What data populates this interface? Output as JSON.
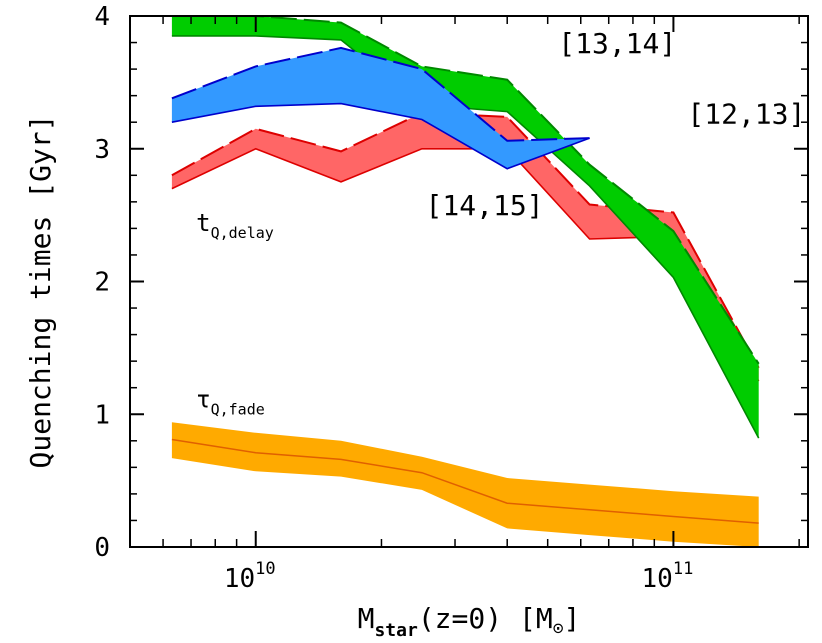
{
  "chart_data": {
    "type": "area",
    "xlabel": {
      "main": "M",
      "sub": "star",
      "rest": "(z=0)  [M",
      "sym": "⊙",
      "end": "]"
    },
    "ylabel": "Quenching times [Gyr]",
    "xscale": "log",
    "xlim": [
      5000000000.0,
      210000000000.0
    ],
    "ylim": [
      0,
      4
    ],
    "y_ticks": [
      0,
      1,
      2,
      3,
      4
    ],
    "y_tick_labels": [
      "0",
      "1",
      "2",
      "3",
      "4"
    ],
    "x_ticks": [
      10000000000.0,
      100000000000.0
    ],
    "x_tick_labels": [
      {
        "base": "10",
        "exp": "10"
      },
      {
        "base": "10",
        "exp": "11"
      }
    ],
    "series": [
      {
        "name": "[14,15]",
        "color": "#ff6666",
        "edge_color": "#dd0000",
        "x": [
          6300000000.0,
          10000000000.0,
          16000000000.0,
          25000000000.0,
          40000000000.0,
          63000000000.0,
          100000000000.0,
          160000000000.0
        ],
        "upper": [
          2.8,
          3.15,
          2.98,
          3.27,
          3.24,
          2.58,
          2.52,
          1.35
        ],
        "lower": [
          2.7,
          3.0,
          2.75,
          3.0,
          3.0,
          2.32,
          2.34,
          1.25
        ]
      },
      {
        "name": "[13,14]",
        "color": "#00cc00",
        "edge_color": "#008800",
        "x": [
          6300000000.0,
          10000000000.0,
          16000000000.0,
          25000000000.0,
          40000000000.0,
          63000000000.0,
          100000000000.0,
          160000000000.0
        ],
        "upper": [
          4.0,
          4.0,
          3.95,
          3.62,
          3.52,
          2.88,
          2.38,
          1.38
        ],
        "lower": [
          3.85,
          3.85,
          3.82,
          3.33,
          3.28,
          2.72,
          2.03,
          0.82
        ]
      },
      {
        "name": "[12,13]",
        "color": "#3399ff",
        "edge_color": "#0000cc",
        "x": [
          6300000000.0,
          10000000000.0,
          16000000000.0,
          25000000000.0,
          40000000000.0,
          63000000000.0
        ],
        "upper": [
          3.38,
          3.62,
          3.76,
          3.6,
          3.06,
          3.08
        ],
        "lower": [
          3.2,
          3.32,
          3.34,
          3.22,
          2.85,
          3.08
        ]
      },
      {
        "name": "tau_Q,fade",
        "color": "#ffaa00",
        "edge_color": "#e06000",
        "x": [
          6300000000.0,
          10000000000.0,
          16000000000.0,
          25000000000.0,
          40000000000.0,
          63000000000.0,
          100000000000.0,
          160000000000.0
        ],
        "upper": [
          0.94,
          0.86,
          0.8,
          0.68,
          0.52,
          0.47,
          0.42,
          0.38
        ],
        "lower": [
          0.67,
          0.57,
          0.53,
          0.43,
          0.14,
          0.09,
          0.04,
          0.0
        ],
        "median": [
          0.81,
          0.71,
          0.66,
          0.56,
          0.33,
          0.28,
          0.23,
          0.18
        ]
      }
    ],
    "annotations": [
      {
        "id": "ann-13-14",
        "text": "[13,14]",
        "x": 53000000000.0,
        "y": 3.72
      },
      {
        "id": "ann-12-13",
        "text": "[12,13]",
        "x": 108000000000.0,
        "y": 3.19
      },
      {
        "id": "ann-14-15",
        "text": "[14,15]",
        "x": 25500000000.0,
        "y": 2.5
      },
      {
        "id": "ann-tdelay",
        "main": "t",
        "sub": "Q,delay",
        "x": 7200000000.0,
        "y": 2.38
      },
      {
        "id": "ann-taufade",
        "main": "τ",
        "sub": "Q,fade",
        "x": 7200000000.0,
        "y": 1.05
      }
    ],
    "grid": false,
    "legend": "none"
  }
}
